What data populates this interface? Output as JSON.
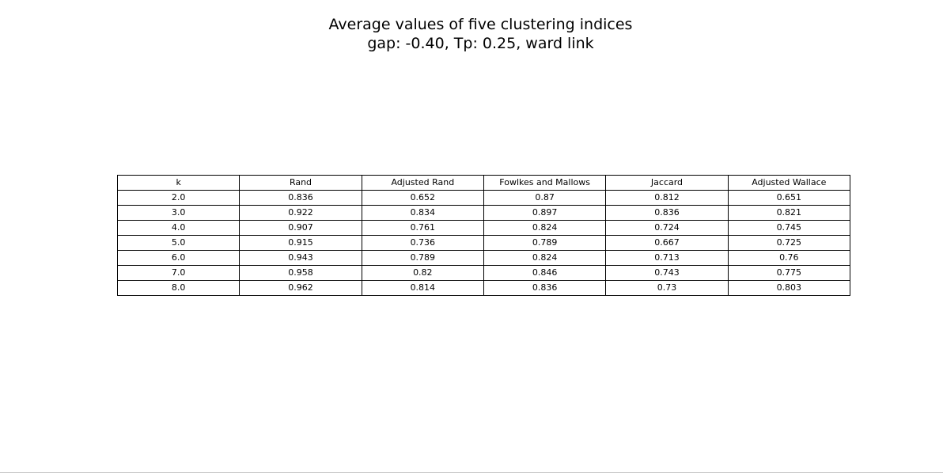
{
  "chart_data": {
    "type": "table",
    "title": "Average values of five clustering indices",
    "subtitle": "gap: -0.40, Tp: 0.25, ward link",
    "columns": [
      "k",
      "Rand",
      "Adjusted Rand",
      "Fowlkes and Mallows",
      "Jaccard",
      "Adjusted Wallace"
    ],
    "rows": [
      [
        "2.0",
        "0.836",
        "0.652",
        "0.87",
        "0.812",
        "0.651"
      ],
      [
        "3.0",
        "0.922",
        "0.834",
        "0.897",
        "0.836",
        "0.821"
      ],
      [
        "4.0",
        "0.907",
        "0.761",
        "0.824",
        "0.724",
        "0.745"
      ],
      [
        "5.0",
        "0.915",
        "0.736",
        "0.789",
        "0.667",
        "0.725"
      ],
      [
        "6.0",
        "0.943",
        "0.789",
        "0.824",
        "0.713",
        "0.76"
      ],
      [
        "7.0",
        "0.958",
        "0.82",
        "0.846",
        "0.743",
        "0.775"
      ],
      [
        "8.0",
        "0.962",
        "0.814",
        "0.836",
        "0.73",
        "0.803"
      ]
    ]
  }
}
